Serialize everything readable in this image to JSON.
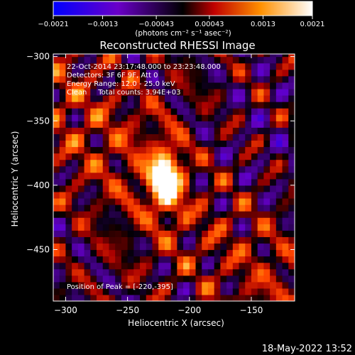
{
  "chart_data": {
    "type": "heatmap",
    "title": "Reconstructed RHESSI Image",
    "xlabel": "Heliocentric X (arcsec)",
    "ylabel": "Heliocentric Y (arcsec)",
    "xlim": [
      -310,
      -115
    ],
    "ylim": [
      -490,
      -298
    ],
    "xticks": [
      -300,
      -250,
      -200,
      -150
    ],
    "yticks": [
      -300,
      -350,
      -400,
      -450
    ],
    "colorbar": {
      "ticks": [
        -0.0021,
        -0.0013,
        -0.00043,
        0.00043,
        0.0013,
        0.0021
      ],
      "tick_labels": [
        "-0.0021",
        "-0.0013",
        "-0.00043",
        "0.00043",
        "0.0013",
        "0.0021"
      ],
      "unit_label": "(photons cm⁻² s⁻¹ asec⁻²)",
      "range": [
        -0.0021,
        0.0021
      ]
    },
    "annotations": [
      "22-Oct-2014 23:17:48.000 to 23:23:48.000",
      "Detectors: 3F 6F 9F, Att 0",
      "Energy Range: 12.0 - 25.0 keV",
      "Clean     Total counts: 3.94E+03"
    ],
    "peak_label": "Position of Peak = [-220,-395]",
    "peak": [
      -220,
      -395
    ],
    "grid": false
  },
  "footer_timestamp": "18-May-2022 13:52"
}
